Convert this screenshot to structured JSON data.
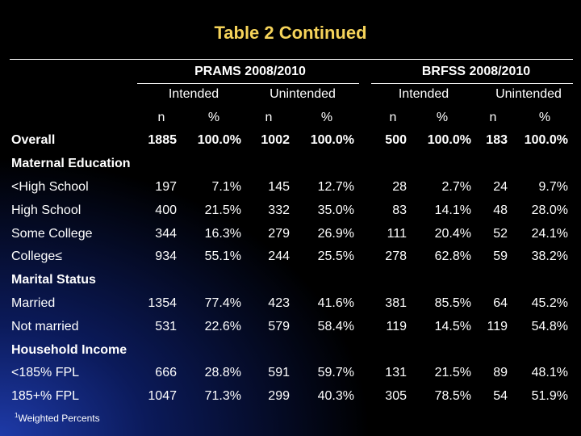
{
  "title": "Table 2 Continued",
  "groups": [
    "PRAMS 2008/2010",
    "BRFSS 2008/2010"
  ],
  "subgroups": [
    "Intended",
    "Unintended",
    "Intended",
    "Unintended"
  ],
  "columns": [
    "n",
    "%",
    "n",
    "%",
    "n",
    "%",
    "n",
    "%"
  ],
  "rows": [
    {
      "type": "data",
      "bold": true,
      "label": "Overall",
      "values": [
        "1885",
        "100.0%",
        "1002",
        "100.0%",
        "500",
        "100.0%",
        "183",
        "100.0%"
      ]
    },
    {
      "type": "section",
      "label": "Maternal Education"
    },
    {
      "type": "data",
      "label": "<High School",
      "values": [
        "197",
        "7.1%",
        "145",
        "12.7%",
        "28",
        "2.7%",
        "24",
        "9.7%"
      ]
    },
    {
      "type": "data",
      "label": "High School",
      "values": [
        "400",
        "21.5%",
        "332",
        "35.0%",
        "83",
        "14.1%",
        "48",
        "28.0%"
      ]
    },
    {
      "type": "data",
      "label": "Some College",
      "values": [
        "344",
        "16.3%",
        "279",
        "26.9%",
        "111",
        "20.4%",
        "52",
        "24.1%"
      ]
    },
    {
      "type": "data",
      "label": "College≤",
      "values": [
        "934",
        "55.1%",
        "244",
        "25.5%",
        "278",
        "62.8%",
        "59",
        "38.2%"
      ]
    },
    {
      "type": "section",
      "label": "Marital Status"
    },
    {
      "type": "data",
      "label": "Married",
      "values": [
        "1354",
        "77.4%",
        "423",
        "41.6%",
        "381",
        "85.5%",
        "64",
        "45.2%"
      ]
    },
    {
      "type": "data",
      "label": "Not married",
      "values": [
        "531",
        "22.6%",
        "579",
        "58.4%",
        "119",
        "14.5%",
        "119",
        "54.8%"
      ]
    },
    {
      "type": "section",
      "label": "Household Income"
    },
    {
      "type": "data",
      "label": "<185% FPL",
      "values": [
        "666",
        "28.8%",
        "591",
        "59.7%",
        "131",
        "21.5%",
        "89",
        "48.1%"
      ]
    },
    {
      "type": "data",
      "label": "185+% FPL",
      "values": [
        "1047",
        "71.3%",
        "299",
        "40.3%",
        "305",
        "78.5%",
        "54",
        "51.9%"
      ]
    }
  ],
  "footnote": {
    "marker": "1",
    "text": "Weighted Percents"
  }
}
